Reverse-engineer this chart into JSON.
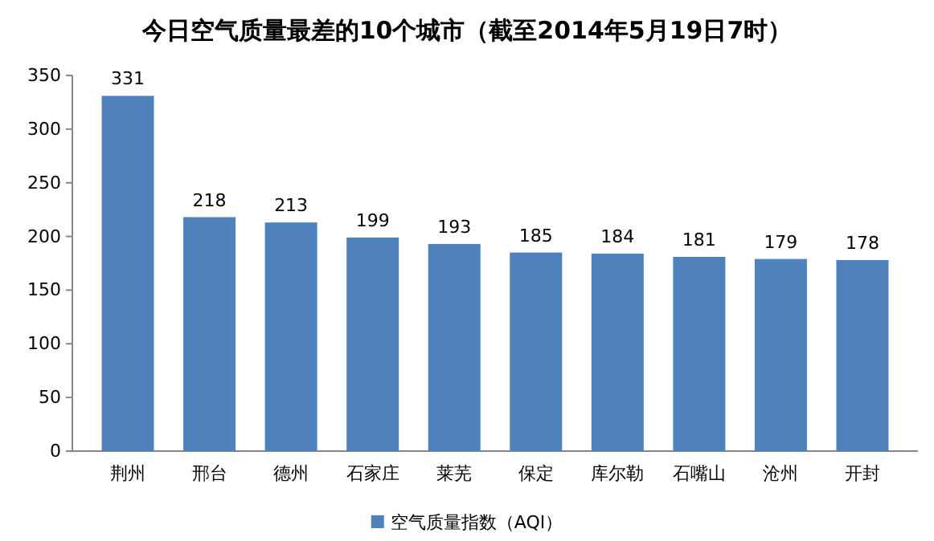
{
  "chart_data": {
    "type": "bar",
    "title": "今日空气质量最差的10个城市（截至2014年5月19日7时）",
    "categories": [
      "荆州",
      "邢台",
      "德州",
      "石家庄",
      "莱芜",
      "保定",
      "库尔勒",
      "石嘴山",
      "沧州",
      "开封"
    ],
    "series": [
      {
        "name": "空气质量指数（AQI）",
        "color": "#4f81bd",
        "values": [
          331,
          218,
          213,
          199,
          193,
          185,
          184,
          181,
          179,
          178
        ]
      }
    ],
    "ylim": [
      0,
      350
    ],
    "yticks": [
      0,
      50,
      100,
      150,
      200,
      250,
      300,
      350
    ],
    "data_labels": true,
    "legend": "bottom",
    "grid": false
  }
}
